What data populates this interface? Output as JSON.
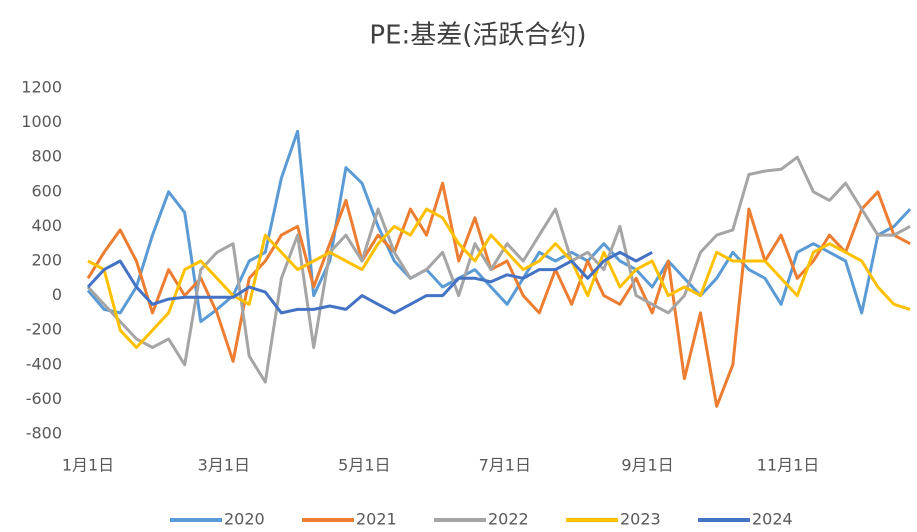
{
  "chart_data": {
    "type": "line",
    "title": "PE:基差(活跃合约)",
    "x": [
      0,
      7,
      14,
      21,
      28,
      35,
      42,
      49,
      56,
      63,
      70,
      77,
      84,
      91,
      98,
      105,
      112,
      119,
      126,
      133,
      140,
      147,
      154,
      161,
      168,
      175,
      182,
      189,
      196,
      203,
      210,
      217,
      224,
      231,
      238,
      245,
      252,
      259,
      266,
      273,
      280,
      287,
      294,
      301,
      308,
      315,
      322,
      329,
      336,
      343,
      350,
      357
    ],
    "xlim": [
      0,
      360
    ],
    "xticks": [
      {
        "value": 0,
        "label": "1月1日"
      },
      {
        "value": 59,
        "label": "3月1日"
      },
      {
        "value": 120,
        "label": "5月1日"
      },
      {
        "value": 181,
        "label": "7月1日"
      },
      {
        "value": 243,
        "label": "9月1日"
      },
      {
        "value": 304,
        "label": "11月1日"
      }
    ],
    "ylim": [
      -800,
      1200
    ],
    "yticks": [
      -800,
      -600,
      -400,
      -200,
      0,
      200,
      400,
      600,
      800,
      1000,
      1200
    ],
    "grid": false,
    "legend": "bottom",
    "series": [
      {
        "name": "2020",
        "color": "#5b9bd5",
        "values": [
          30,
          -80,
          -100,
          50,
          350,
          600,
          480,
          -150,
          -80,
          0,
          200,
          250,
          680,
          950,
          0,
          200,
          740,
          650,
          400,
          200,
          100,
          150,
          50,
          100,
          150,
          50,
          -50,
          100,
          250,
          200,
          250,
          200,
          300,
          200,
          150,
          50,
          200,
          100,
          0,
          100,
          250,
          150,
          100,
          -50,
          250,
          300,
          250,
          200,
          -100,
          350,
          400,
          500
        ]
      },
      {
        "name": "2021",
        "color": "#ed7d31",
        "values": [
          100,
          250,
          380,
          200,
          -100,
          150,
          0,
          100,
          -100,
          -380,
          100,
          200,
          350,
          400,
          50,
          300,
          550,
          200,
          350,
          250,
          500,
          350,
          650,
          200,
          450,
          150,
          200,
          0,
          -100,
          150,
          -50,
          200,
          0,
          -50,
          100,
          -100,
          200,
          -480,
          -100,
          -640,
          -400,
          500,
          200,
          350,
          100,
          200,
          350,
          250,
          500,
          600,
          350,
          300
        ]
      },
      {
        "name": "2022",
        "color": "#a5a5a5",
        "values": [
          50,
          -50,
          -150,
          -250,
          -300,
          -250,
          -400,
          150,
          250,
          300,
          -350,
          -500,
          100,
          350,
          -300,
          250,
          350,
          200,
          500,
          250,
          100,
          150,
          250,
          0,
          300,
          150,
          300,
          200,
          350,
          500,
          200,
          250,
          150,
          400,
          0,
          -50,
          -100,
          0,
          250,
          350,
          380,
          700,
          720,
          730,
          800,
          600,
          550,
          650,
          500,
          350,
          350,
          400
        ]
      },
      {
        "name": "2023",
        "color": "#ffc000",
        "values": [
          200,
          150,
          -200,
          -300,
          -200,
          -100,
          150,
          200,
          100,
          0,
          -50,
          350,
          250,
          150,
          200,
          250,
          200,
          150,
          300,
          400,
          350,
          500,
          450,
          300,
          200,
          350,
          250,
          150,
          200,
          300,
          200,
          0,
          250,
          50,
          150,
          200,
          0,
          50,
          0,
          250,
          200,
          200,
          200,
          100,
          0,
          250,
          300,
          250,
          200,
          50,
          -50,
          -80
        ]
      },
      {
        "name": "2024",
        "color": "#4472c4",
        "values": [
          50,
          150,
          200,
          50,
          -50,
          -20,
          -10,
          -10,
          -10,
          -10,
          50,
          20,
          -100,
          -80,
          -80,
          -60,
          -80,
          0,
          -50,
          -100,
          -50,
          0,
          0,
          100,
          100,
          80,
          120,
          100,
          150,
          150,
          200,
          100,
          200,
          250,
          200,
          250,
          null,
          null,
          null,
          null,
          null,
          null,
          null,
          null,
          null,
          null,
          null,
          null,
          null,
          null,
          null,
          null
        ]
      }
    ]
  }
}
